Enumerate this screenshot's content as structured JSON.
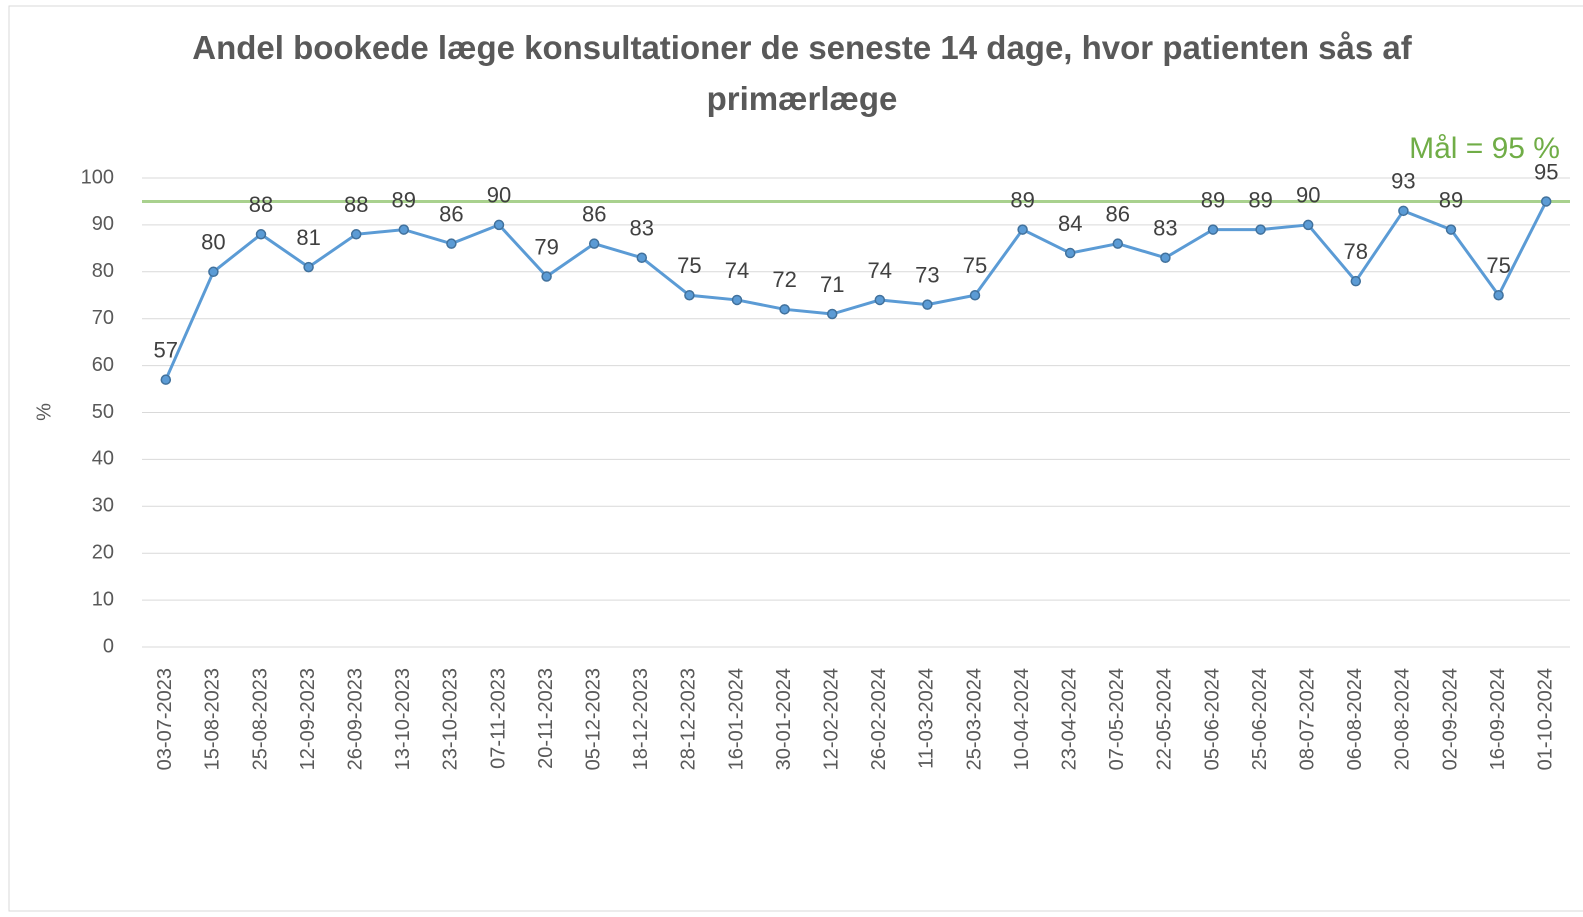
{
  "chart_data": {
    "type": "line",
    "title": "Andel bookede læge konsultationer de seneste 14 dage, hvor patienten sås af primærlæge",
    "y_label": "%",
    "categories": [
      "03-07-2023",
      "15-08-2023",
      "25-08-2023",
      "12-09-2023",
      "26-09-2023",
      "13-10-2023",
      "23-10-2023",
      "07-11-2023",
      "20-11-2023",
      "05-12-2023",
      "18-12-2023",
      "28-12-2023",
      "16-01-2024",
      "30-01-2024",
      "12-02-2024",
      "26-02-2024",
      "11-03-2024",
      "25-03-2024",
      "10-04-2024",
      "23-04-2024",
      "07-05-2024",
      "22-05-2024",
      "05-06-2024",
      "25-06-2024",
      "08-07-2024",
      "06-08-2024",
      "20-08-2024",
      "02-09-2024",
      "16-09-2024",
      "01-10-2024"
    ],
    "values": [
      57,
      80,
      88,
      81,
      88,
      89,
      86,
      90,
      79,
      86,
      83,
      75,
      74,
      72,
      71,
      74,
      73,
      75,
      89,
      84,
      86,
      83,
      89,
      89,
      90,
      78,
      93,
      89,
      75,
      95
    ],
    "color": "#5b9bd5",
    "target": {
      "value": 95,
      "label": "Mål = 95 %",
      "color": "#a9d18e"
    },
    "ylim": [
      0,
      100
    ],
    "yticks": [
      0,
      10,
      20,
      30,
      40,
      50,
      60,
      70,
      80,
      90,
      100
    ],
    "grid": true
  }
}
